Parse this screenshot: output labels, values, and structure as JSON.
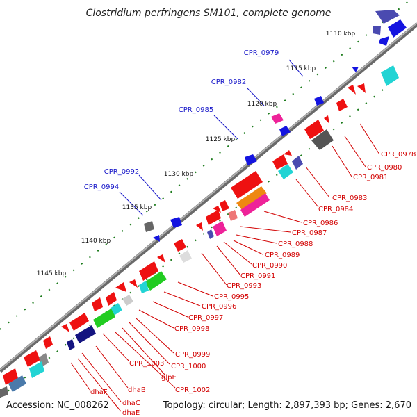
{
  "title": "Clostridium perfringens SM101, complete genome",
  "footer": {
    "accession": "Accession: NC_008262",
    "summary": "Topology: circular; Length: 2,897,393 bp; Genes: 2,670"
  },
  "kbp_labels": [
    "1110 kbp",
    "1115 kbp",
    "1120 kbp",
    "1125 kbp",
    "1130 kbp",
    "1135 kbp",
    "1140 kbp",
    "1145 kbp"
  ],
  "top_gene_labels": [
    "CPR_0979",
    "CPR_0982",
    "CPR_0985",
    "CPR_0992",
    "CPR_0994"
  ],
  "bottom_gene_labels": [
    "CPR_0978",
    "CPR_0980",
    "CPR_0981",
    "CPR_0983",
    "CPR_0984",
    "CPR_0986",
    "CPR_0987",
    "CPR_0988",
    "CPR_0989",
    "CPR_0990",
    "CPR_0991",
    "CPR_0993",
    "CPR_0995",
    "CPR_0996",
    "CPR_0997",
    "CPR_0998",
    "CPR_0999",
    "CPR_1000",
    "glpE",
    "CPR_1002",
    "CPR_1003",
    "dhaB",
    "dhaF",
    "dhaC",
    "dhaE"
  ],
  "colors": {
    "backbone": "#8a8a8a",
    "top_label": "#1414c8",
    "bottom_label": "#d20000",
    "tick_dot": "#1a7a1a",
    "gene_forward": "#1a1aee",
    "gene_reverse": "#ee1111"
  }
}
